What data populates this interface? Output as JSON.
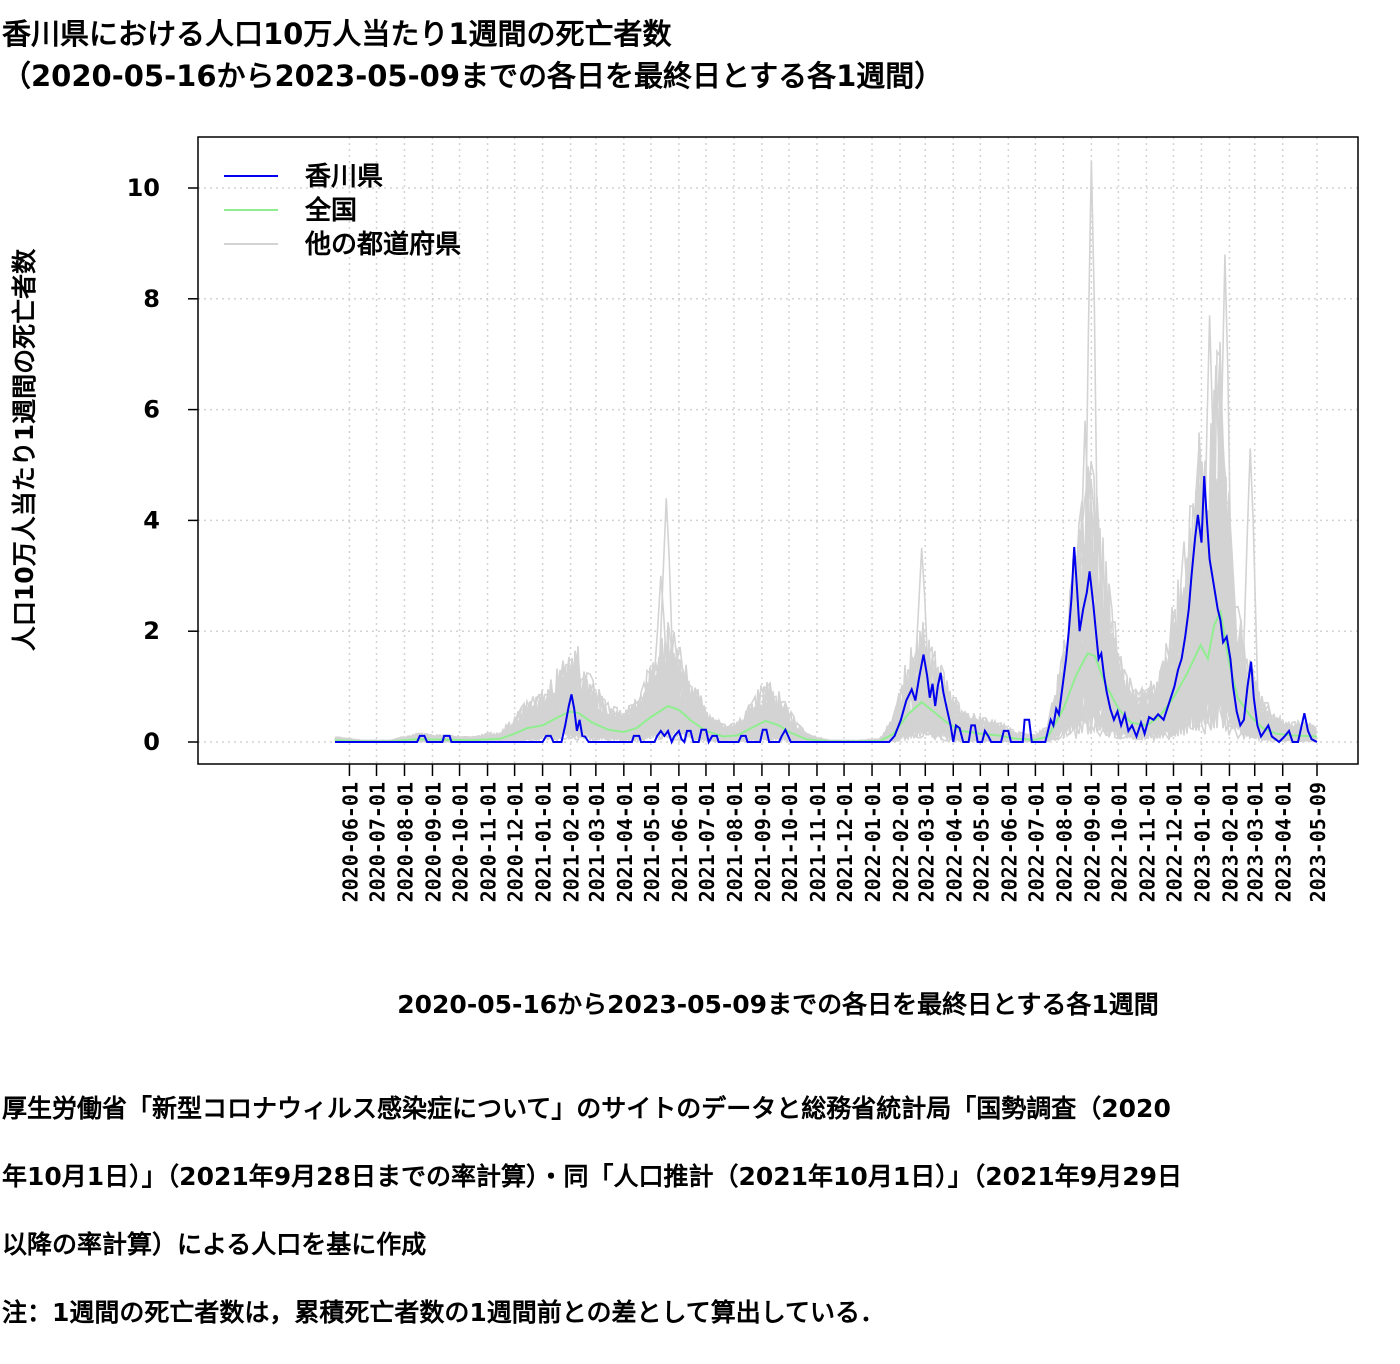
{
  "page": {
    "title_line1": "香川県における人口10万人当たり1週間の死亡者数",
    "title_line2": "（2020-05-16から2023-05-09までの各日を最終日とする各1週間）",
    "caption_lines": [
      "厚生労働省「新型コロナウィルス感染症について」のサイトのデータと総務省統計局「国勢調査（2020",
      "年10月1日）」（2021年9月28日までの率計算）・同「人口推計（2021年10月1日）」（2021年9月29日",
      "以降の率計算）による人口を基に作成",
      "注：1週間の死亡者数は，累積死亡者数の1週間前との差として算出している．"
    ]
  },
  "chart_data": {
    "type": "line",
    "xlabel": "2020-05-16から2023-05-09までの各日を最終日とする各1週間",
    "ylabel": "人口10万人当たり1週間の死亡者数",
    "x_range": [
      "2020-05-16",
      "2023-05-09"
    ],
    "ylim": [
      0,
      10.5
    ],
    "y_ticks": [
      0,
      2,
      4,
      6,
      8,
      10
    ],
    "x_ticks": [
      "2020-06-01",
      "2020-07-01",
      "2020-08-01",
      "2020-09-01",
      "2020-10-01",
      "2020-11-01",
      "2020-12-01",
      "2021-01-01",
      "2021-02-01",
      "2021-03-01",
      "2021-04-01",
      "2021-05-01",
      "2021-06-01",
      "2021-07-01",
      "2021-08-01",
      "2021-09-01",
      "2021-10-01",
      "2021-11-01",
      "2021-12-01",
      "2022-01-01",
      "2022-02-01",
      "2022-03-01",
      "2022-04-01",
      "2022-05-01",
      "2022-06-01",
      "2022-07-01",
      "2022-08-01",
      "2022-09-01",
      "2022-10-01",
      "2022-11-01",
      "2022-12-01",
      "2023-01-01",
      "2023-02-01",
      "2023-03-01",
      "2023-04-01",
      "2023-05-09"
    ],
    "grid": true,
    "legend_position": "top-left",
    "series": [
      {
        "name": "香川県",
        "color": "#0000ee",
        "points": [
          [
            "2020-05-16",
            0
          ],
          [
            "2020-08-15",
            0
          ],
          [
            "2020-08-18",
            0.11
          ],
          [
            "2020-08-23",
            0.11
          ],
          [
            "2020-08-26",
            0
          ],
          [
            "2020-09-12",
            0
          ],
          [
            "2020-09-14",
            0.11
          ],
          [
            "2020-09-20",
            0.11
          ],
          [
            "2020-09-22",
            0
          ],
          [
            "2021-01-01",
            0
          ],
          [
            "2021-01-05",
            0.11
          ],
          [
            "2021-01-10",
            0.11
          ],
          [
            "2021-01-13",
            0
          ],
          [
            "2021-01-22",
            0
          ],
          [
            "2021-01-26",
            0.3
          ],
          [
            "2021-01-30",
            0.65
          ],
          [
            "2021-02-02",
            0.86
          ],
          [
            "2021-02-05",
            0.6
          ],
          [
            "2021-02-08",
            0.2
          ],
          [
            "2021-02-11",
            0.4
          ],
          [
            "2021-02-14",
            0.11
          ],
          [
            "2021-02-17",
            0.1
          ],
          [
            "2021-02-21",
            0
          ],
          [
            "2021-04-10",
            0
          ],
          [
            "2021-04-12",
            0.11
          ],
          [
            "2021-04-18",
            0.11
          ],
          [
            "2021-04-20",
            0
          ],
          [
            "2021-05-05",
            0
          ],
          [
            "2021-05-08",
            0.11
          ],
          [
            "2021-05-12",
            0.2
          ],
          [
            "2021-05-16",
            0.11
          ],
          [
            "2021-05-20",
            0.2
          ],
          [
            "2021-05-24",
            0
          ],
          [
            "2021-05-27",
            0.11
          ],
          [
            "2021-06-01",
            0.2
          ],
          [
            "2021-06-04",
            0.05
          ],
          [
            "2021-06-07",
            0
          ],
          [
            "2021-06-10",
            0.2
          ],
          [
            "2021-06-14",
            0.2
          ],
          [
            "2021-06-17",
            0
          ],
          [
            "2021-06-23",
            0
          ],
          [
            "2021-06-26",
            0.22
          ],
          [
            "2021-07-01",
            0.22
          ],
          [
            "2021-07-04",
            0
          ],
          [
            "2021-07-08",
            0.11
          ],
          [
            "2021-07-13",
            0.11
          ],
          [
            "2021-07-15",
            0
          ],
          [
            "2021-08-06",
            0
          ],
          [
            "2021-08-09",
            0.11
          ],
          [
            "2021-08-14",
            0.11
          ],
          [
            "2021-08-16",
            0
          ],
          [
            "2021-08-30",
            0
          ],
          [
            "2021-09-02",
            0.22
          ],
          [
            "2021-09-06",
            0.22
          ],
          [
            "2021-09-09",
            0
          ],
          [
            "2021-09-20",
            0
          ],
          [
            "2021-09-23",
            0.11
          ],
          [
            "2021-09-27",
            0.22
          ],
          [
            "2021-09-30",
            0.11
          ],
          [
            "2021-10-03",
            0
          ],
          [
            "2022-01-20",
            0
          ],
          [
            "2022-01-26",
            0.11
          ],
          [
            "2022-02-02",
            0.4
          ],
          [
            "2022-02-08",
            0.75
          ],
          [
            "2022-02-14",
            0.95
          ],
          [
            "2022-02-18",
            0.75
          ],
          [
            "2022-02-22",
            1.15
          ],
          [
            "2022-02-27",
            1.58
          ],
          [
            "2022-03-03",
            1.2
          ],
          [
            "2022-03-06",
            0.8
          ],
          [
            "2022-03-09",
            1.05
          ],
          [
            "2022-03-12",
            0.65
          ],
          [
            "2022-03-15",
            1.02
          ],
          [
            "2022-03-18",
            1.25
          ],
          [
            "2022-03-21",
            0.9
          ],
          [
            "2022-03-25",
            0.6
          ],
          [
            "2022-03-29",
            0.3
          ],
          [
            "2022-04-01",
            0
          ],
          [
            "2022-04-04",
            0.3
          ],
          [
            "2022-04-08",
            0.25
          ],
          [
            "2022-04-12",
            0
          ],
          [
            "2022-04-18",
            0
          ],
          [
            "2022-04-21",
            0.3
          ],
          [
            "2022-04-25",
            0.3
          ],
          [
            "2022-04-28",
            0
          ],
          [
            "2022-05-03",
            0
          ],
          [
            "2022-05-06",
            0.2
          ],
          [
            "2022-05-10",
            0.1
          ],
          [
            "2022-05-13",
            0
          ],
          [
            "2022-05-24",
            0
          ],
          [
            "2022-05-27",
            0.2
          ],
          [
            "2022-06-01",
            0.2
          ],
          [
            "2022-06-04",
            0
          ],
          [
            "2022-06-17",
            0
          ],
          [
            "2022-06-19",
            0.4
          ],
          [
            "2022-06-24",
            0.4
          ],
          [
            "2022-06-27",
            0
          ],
          [
            "2022-07-12",
            0
          ],
          [
            "2022-07-15",
            0.2
          ],
          [
            "2022-07-18",
            0.4
          ],
          [
            "2022-07-21",
            0.3
          ],
          [
            "2022-07-24",
            0.6
          ],
          [
            "2022-07-27",
            0.5
          ],
          [
            "2022-07-31",
            1.0
          ],
          [
            "2022-08-04",
            1.5
          ],
          [
            "2022-08-07",
            2.0
          ],
          [
            "2022-08-10",
            2.6
          ],
          [
            "2022-08-13",
            3.52
          ],
          [
            "2022-08-16",
            2.8
          ],
          [
            "2022-08-19",
            2.0
          ],
          [
            "2022-08-23",
            2.4
          ],
          [
            "2022-08-27",
            2.7
          ],
          [
            "2022-08-30",
            3.08
          ],
          [
            "2022-09-03",
            2.5
          ],
          [
            "2022-09-06",
            2.0
          ],
          [
            "2022-09-09",
            1.5
          ],
          [
            "2022-09-12",
            1.6
          ],
          [
            "2022-09-15",
            1.2
          ],
          [
            "2022-09-18",
            0.9
          ],
          [
            "2022-09-22",
            0.6
          ],
          [
            "2022-09-26",
            0.4
          ],
          [
            "2022-09-30",
            0.55
          ],
          [
            "2022-10-04",
            0.3
          ],
          [
            "2022-10-08",
            0.5
          ],
          [
            "2022-10-12",
            0.2
          ],
          [
            "2022-10-16",
            0.3
          ],
          [
            "2022-10-21",
            0.1
          ],
          [
            "2022-10-26",
            0.35
          ],
          [
            "2022-10-30",
            0.15
          ],
          [
            "2022-11-04",
            0.45
          ],
          [
            "2022-11-09",
            0.4
          ],
          [
            "2022-11-14",
            0.5
          ],
          [
            "2022-11-20",
            0.4
          ],
          [
            "2022-11-24",
            0.6
          ],
          [
            "2022-11-28",
            0.8
          ],
          [
            "2022-12-02",
            1.0
          ],
          [
            "2022-12-06",
            1.3
          ],
          [
            "2022-12-10",
            1.5
          ],
          [
            "2022-12-14",
            1.9
          ],
          [
            "2022-12-18",
            2.4
          ],
          [
            "2022-12-21",
            3.0
          ],
          [
            "2022-12-25",
            3.7
          ],
          [
            "2022-12-28",
            4.1
          ],
          [
            "2023-01-01",
            3.6
          ],
          [
            "2023-01-04",
            4.8
          ],
          [
            "2023-01-07",
            4.0
          ],
          [
            "2023-01-10",
            3.3
          ],
          [
            "2023-01-13",
            3.0
          ],
          [
            "2023-01-16",
            2.7
          ],
          [
            "2023-01-19",
            2.4
          ],
          [
            "2023-01-22",
            2.2
          ],
          [
            "2023-01-25",
            1.8
          ],
          [
            "2023-01-29",
            1.9
          ],
          [
            "2023-02-02",
            1.5
          ],
          [
            "2023-02-05",
            1.0
          ],
          [
            "2023-02-09",
            0.55
          ],
          [
            "2023-02-13",
            0.3
          ],
          [
            "2023-02-17",
            0.4
          ],
          [
            "2023-02-21",
            1.0
          ],
          [
            "2023-02-25",
            1.45
          ],
          [
            "2023-02-28",
            0.8
          ],
          [
            "2023-03-04",
            0.3
          ],
          [
            "2023-03-08",
            0.1
          ],
          [
            "2023-03-12",
            0.2
          ],
          [
            "2023-03-16",
            0.3
          ],
          [
            "2023-03-20",
            0.1
          ],
          [
            "2023-03-24",
            0.05
          ],
          [
            "2023-03-28",
            0
          ],
          [
            "2023-04-03",
            0.1
          ],
          [
            "2023-04-08",
            0.2
          ],
          [
            "2023-04-12",
            0
          ],
          [
            "2023-04-18",
            0
          ],
          [
            "2023-04-22",
            0.3
          ],
          [
            "2023-04-25",
            0.52
          ],
          [
            "2023-04-29",
            0.2
          ],
          [
            "2023-05-03",
            0.05
          ],
          [
            "2023-05-09",
            0
          ]
        ]
      },
      {
        "name": "全国",
        "color": "#90ee90",
        "points": [
          [
            "2020-05-16",
            0.03
          ],
          [
            "2020-06-15",
            0.01
          ],
          [
            "2020-07-15",
            0.01
          ],
          [
            "2020-08-15",
            0.05
          ],
          [
            "2020-09-15",
            0.04
          ],
          [
            "2020-10-15",
            0.03
          ],
          [
            "2020-11-15",
            0.06
          ],
          [
            "2020-12-01",
            0.15
          ],
          [
            "2020-12-15",
            0.25
          ],
          [
            "2021-01-01",
            0.3
          ],
          [
            "2021-01-15",
            0.42
          ],
          [
            "2021-01-31",
            0.55
          ],
          [
            "2021-02-10",
            0.52
          ],
          [
            "2021-02-25",
            0.35
          ],
          [
            "2021-03-15",
            0.22
          ],
          [
            "2021-04-01",
            0.18
          ],
          [
            "2021-04-15",
            0.25
          ],
          [
            "2021-05-01",
            0.45
          ],
          [
            "2021-05-20",
            0.65
          ],
          [
            "2021-06-01",
            0.58
          ],
          [
            "2021-06-15",
            0.38
          ],
          [
            "2021-07-01",
            0.2
          ],
          [
            "2021-07-20",
            0.1
          ],
          [
            "2021-08-05",
            0.12
          ],
          [
            "2021-08-20",
            0.25
          ],
          [
            "2021-09-05",
            0.38
          ],
          [
            "2021-09-20",
            0.3
          ],
          [
            "2021-10-01",
            0.18
          ],
          [
            "2021-10-20",
            0.05
          ],
          [
            "2021-11-15",
            0.01
          ],
          [
            "2021-12-15",
            0.01
          ],
          [
            "2022-01-10",
            0.02
          ],
          [
            "2022-01-25",
            0.15
          ],
          [
            "2022-02-10",
            0.5
          ],
          [
            "2022-02-25",
            0.72
          ],
          [
            "2022-03-10",
            0.55
          ],
          [
            "2022-03-25",
            0.35
          ],
          [
            "2022-04-10",
            0.2
          ],
          [
            "2022-05-01",
            0.15
          ],
          [
            "2022-05-20",
            0.12
          ],
          [
            "2022-06-10",
            0.06
          ],
          [
            "2022-07-01",
            0.04
          ],
          [
            "2022-07-15",
            0.1
          ],
          [
            "2022-08-01",
            0.6
          ],
          [
            "2022-08-15",
            1.2
          ],
          [
            "2022-08-28",
            1.6
          ],
          [
            "2022-09-05",
            1.55
          ],
          [
            "2022-09-15",
            1.1
          ],
          [
            "2022-10-01",
            0.6
          ],
          [
            "2022-10-15",
            0.35
          ],
          [
            "2022-11-01",
            0.3
          ],
          [
            "2022-11-15",
            0.45
          ],
          [
            "2022-12-01",
            0.8
          ],
          [
            "2022-12-15",
            1.2
          ],
          [
            "2022-12-31",
            1.75
          ],
          [
            "2023-01-08",
            1.5
          ],
          [
            "2023-01-15",
            2.1
          ],
          [
            "2023-01-22",
            2.35
          ],
          [
            "2023-02-01",
            1.4
          ],
          [
            "2023-02-10",
            0.8
          ],
          [
            "2023-02-25",
            0.45
          ],
          [
            "2023-03-10",
            0.25
          ],
          [
            "2023-03-25",
            0.15
          ],
          [
            "2023-04-10",
            0.12
          ],
          [
            "2023-05-09",
            0.1
          ]
        ]
      },
      {
        "name": "他の都道府県",
        "color": "#d3d3d3",
        "description_only": true
      }
    ]
  },
  "colors": {
    "kagawa": "#0000ee",
    "national": "#90ee90",
    "others": "#d3d3d3",
    "grid": "#d3d3d3",
    "axis": "#000000"
  }
}
